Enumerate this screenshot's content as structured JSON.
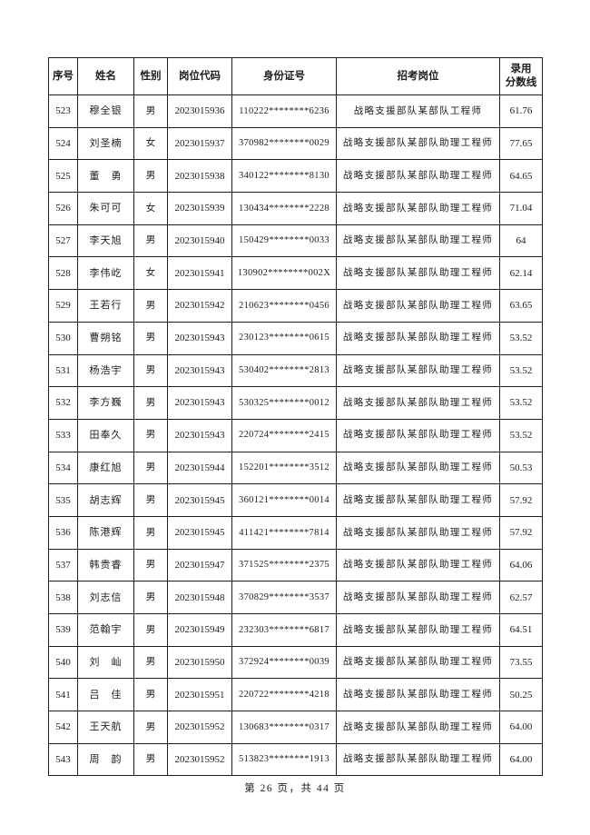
{
  "table": {
    "columns": [
      {
        "label": "序号"
      },
      {
        "label": "姓名"
      },
      {
        "label": "性别"
      },
      {
        "label": "岗位代码"
      },
      {
        "label": "身份证号"
      },
      {
        "label": "招考岗位"
      },
      {
        "label": "录用分数线",
        "line1": "录用",
        "line2": "分数线"
      }
    ],
    "rows": [
      [
        "523",
        "穆全银",
        "男",
        "2023015936",
        "110222********6236",
        "战略支援部队某部队工程师",
        "61.76"
      ],
      [
        "524",
        "刘圣楠",
        "女",
        "2023015937",
        "370982********0029",
        "战略支援部队某部队助理工程师",
        "77.65"
      ],
      [
        "525",
        "董　勇",
        "男",
        "2023015938",
        "340122********8130",
        "战略支援部队某部队助理工程师",
        "64.65"
      ],
      [
        "526",
        "朱可可",
        "女",
        "2023015939",
        "130434********2228",
        "战略支援部队某部队助理工程师",
        "71.04"
      ],
      [
        "527",
        "李天旭",
        "男",
        "2023015940",
        "150429********0033",
        "战略支援部队某部队助理工程师",
        "64"
      ],
      [
        "528",
        "李伟屹",
        "女",
        "2023015941",
        "130902********002X",
        "战略支援部队某部队助理工程师",
        "62.14"
      ],
      [
        "529",
        "王若行",
        "男",
        "2023015942",
        "210623********0456",
        "战略支援部队某部队助理工程师",
        "63.65"
      ],
      [
        "530",
        "曹朔铭",
        "男",
        "2023015943",
        "230123********0615",
        "战略支援部队某部队助理工程师",
        "53.52"
      ],
      [
        "531",
        "杨浩宇",
        "男",
        "2023015943",
        "530402********2813",
        "战略支援部队某部队助理工程师",
        "53.52"
      ],
      [
        "532",
        "李方巍",
        "男",
        "2023015943",
        "530325********0012",
        "战略支援部队某部队助理工程师",
        "53.52"
      ],
      [
        "533",
        "田奉久",
        "男",
        "2023015943",
        "220724********2415",
        "战略支援部队某部队助理工程师",
        "53.52"
      ],
      [
        "534",
        "康红旭",
        "男",
        "2023015944",
        "152201********3512",
        "战略支援部队某部队助理工程师",
        "50.53"
      ],
      [
        "535",
        "胡志辉",
        "男",
        "2023015945",
        "360121********0014",
        "战略支援部队某部队助理工程师",
        "57.92"
      ],
      [
        "536",
        "陈港辉",
        "男",
        "2023015945",
        "411421********7814",
        "战略支援部队某部队助理工程师",
        "57.92"
      ],
      [
        "537",
        "韩贵睿",
        "男",
        "2023015947",
        "371525********2375",
        "战略支援部队某部队助理工程师",
        "64.06"
      ],
      [
        "538",
        "刘志信",
        "男",
        "2023015948",
        "370829********3537",
        "战略支援部队某部队助理工程师",
        "62.57"
      ],
      [
        "539",
        "范翰宇",
        "男",
        "2023015949",
        "232303********6817",
        "战略支援部队某部队助理工程师",
        "64.51"
      ],
      [
        "540",
        "刘　屾",
        "男",
        "2023015950",
        "372924********0039",
        "战略支援部队某部队助理工程师",
        "73.55"
      ],
      [
        "541",
        "吕　佳",
        "男",
        "2023015951",
        "220722********4218",
        "战略支援部队某部队助理工程师",
        "50.25"
      ],
      [
        "542",
        "王天航",
        "男",
        "2023015952",
        "130683********0317",
        "战略支援部队某部队助理工程师",
        "64.00"
      ],
      [
        "543",
        "周　韵",
        "男",
        "2023015952",
        "513823********1913",
        "战略支援部队某部队助理工程师",
        "64.00"
      ]
    ]
  },
  "footer": {
    "page_label": "第 26 页，共 44 页"
  }
}
